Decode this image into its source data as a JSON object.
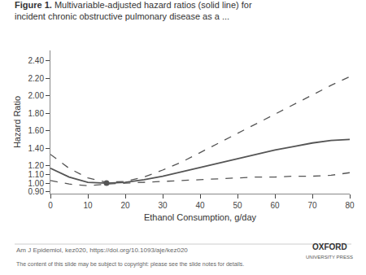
{
  "chart_data": {
    "type": "line",
    "title": "Figure 1.",
    "subtitle": "Multivariable-adjusted hazard ratios (solid line) for\nincident chronic obstructive pulmonary disease as a ...",
    "x_label": "Ethanol Consumption, g/day",
    "y_label": "Hazard Ratio",
    "annotations": [
      "Am J Epidemiol, kez020, https://doi.org/10.1093/aje/kez020",
      "The content of this slide may be subject to copyright: please see the slide notes for details.",
      "OXFORD",
      "UNIVERSITY PRESS"
    ],
    "x": [
      0,
      5,
      10,
      15,
      20,
      25,
      30,
      35,
      40,
      45,
      50,
      55,
      60,
      65,
      70,
      75,
      80
    ],
    "series": [
      {
        "color": "#555555",
        "line_style": "dashed",
        "values": [
          1.33,
          1.17,
          1.06,
          1.01,
          1.02,
          1.07,
          1.15,
          1.24,
          1.35,
          1.46,
          1.57,
          1.68,
          1.79,
          1.9,
          2.01,
          2.12,
          2.22
        ]
      },
      {
        "color": "#555555",
        "line_style": "dashed",
        "values": [
          1.03,
          0.99,
          0.97,
          0.99,
          1.0,
          1.01,
          1.02,
          1.03,
          1.04,
          1.05,
          1.06,
          1.07,
          1.07,
          1.08,
          1.08,
          1.09,
          1.12
        ]
      },
      {
        "color": "#555555",
        "line_style": "solid",
        "values": [
          1.17,
          1.07,
          1.01,
          1.0,
          1.01,
          1.04,
          1.08,
          1.13,
          1.18,
          1.23,
          1.28,
          1.33,
          1.38,
          1.42,
          1.46,
          1.49,
          1.5
        ]
      },
      {
        "type": "scatter",
        "marker": "circle",
        "color": "#555555",
        "x": [
          15
        ],
        "values": [
          1.0
        ]
      }
    ],
    "xlim": [
      0,
      80
    ],
    "xticks": [
      0,
      10,
      20,
      30,
      40,
      50,
      60,
      70,
      80
    ],
    "ylim": [
      0.88,
      2.52
    ],
    "yticks": [
      {
        "value": 0.9,
        "label": "0.90"
      },
      {
        "value": 1.0,
        "label": "1.00"
      },
      {
        "value": 1.1,
        "label": "1.10"
      },
      {
        "value": 1.2,
        "label": "1.20"
      },
      {
        "value": 1.4,
        "label": "1.40"
      },
      {
        "value": 1.6,
        "label": "1.60"
      },
      {
        "value": 1.8,
        "label": "1.80"
      },
      {
        "value": 2.0,
        "label": "2.00"
      },
      {
        "value": 2.2,
        "label": "2.20"
      },
      {
        "value": 2.4,
        "label": "2.40"
      }
    ],
    "grid": false
  }
}
